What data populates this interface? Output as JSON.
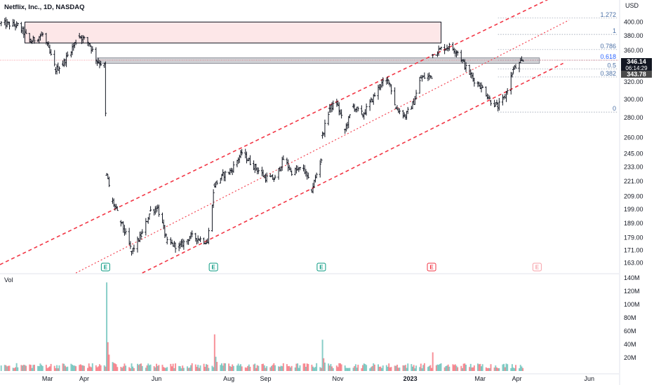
{
  "chart_data": {
    "type": "ohlc",
    "title": "Netflix, Inc., 1D, NASDAQ",
    "currency": "USD",
    "volume_label": "Vol",
    "y_scale": "log",
    "ylim": [
      157,
      432
    ],
    "y_ticks": [
      "400.00",
      "380.00",
      "360.00",
      "340.00",
      "320.00",
      "300.00",
      "280.00",
      "260.00",
      "245.00",
      "233.00",
      "221.00",
      "209.00",
      "199.00",
      "189.00",
      "179.00",
      "171.00",
      "163.00"
    ],
    "vol_ticks": [
      "140M",
      "120M",
      "100M",
      "80M",
      "60M",
      "40M",
      "20M"
    ],
    "x_ticks": [
      "Mar",
      "Apr",
      "Jun",
      "Aug",
      "Sep",
      "Nov",
      "2023",
      "Mar",
      "Apr",
      "Jun"
    ],
    "price_axis_labels": {
      "last_price": "346.14",
      "countdown": "06:14:29",
      "secondary_price": "343.78"
    },
    "fib_levels": [
      {
        "label": "1.272",
        "price": 406
      },
      {
        "label": "1",
        "price": 382
      },
      {
        "label": "0.786",
        "price": 361
      },
      {
        "label": "0.618",
        "price": 347
      },
      {
        "label": "0.5",
        "price": 336
      },
      {
        "label": "0.382",
        "price": 326
      },
      {
        "label": "0",
        "price": 286
      }
    ],
    "earnings_markers": [
      {
        "label": "E",
        "date": "2022-04-19",
        "style": "reported"
      },
      {
        "label": "E",
        "date": "2022-07-19",
        "style": "reported"
      },
      {
        "label": "E",
        "date": "2022-10-18",
        "style": "reported"
      },
      {
        "label": "E",
        "date": "2023-01-19",
        "style": "miss"
      },
      {
        "label": "E",
        "date": "2023-04-18",
        "style": "upcoming"
      }
    ],
    "zones": [
      {
        "name": "supply-zone",
        "price_from": 370,
        "price_to": 400,
        "date_from": "2022-02-10",
        "date_to": "2023-01-27"
      },
      {
        "name": "resistance-band",
        "price_from": 343,
        "price_to": 350,
        "date_from": "2022-04-12",
        "date_to": "2023-04-20"
      }
    ],
    "channel": {
      "upper": [
        [
          "2022-01-20",
          162
        ],
        [
          "2023-05-15",
          452
        ]
      ],
      "mid": [
        [
          "2022-03-25",
          157
        ],
        [
          "2023-05-15",
          403
        ]
      ],
      "lower": [
        [
          "2022-05-20",
          157
        ],
        [
          "2023-05-10",
          343
        ]
      ]
    },
    "anchors": [
      [
        "2022-01-21",
        398
      ],
      [
        "2022-02-04",
        395
      ],
      [
        "2022-02-15",
        372
      ],
      [
        "2022-02-25",
        382
      ],
      [
        "2022-03-08",
        335
      ],
      [
        "2022-03-14",
        342
      ],
      [
        "2022-03-28",
        380
      ],
      [
        "2022-04-05",
        370
      ],
      [
        "2022-04-12",
        346
      ],
      [
        "2022-04-18",
        340
      ],
      [
        "2022-04-20",
        226
      ],
      [
        "2022-04-25",
        205
      ],
      [
        "2022-05-02",
        190
      ],
      [
        "2022-05-11",
        170
      ],
      [
        "2022-05-20",
        182
      ],
      [
        "2022-05-27",
        198
      ],
      [
        "2022-06-02",
        200
      ],
      [
        "2022-06-10",
        176
      ],
      [
        "2022-06-20",
        173
      ],
      [
        "2022-06-30",
        180
      ],
      [
        "2022-07-08",
        178
      ],
      [
        "2022-07-14",
        176
      ],
      [
        "2022-07-20",
        218
      ],
      [
        "2022-07-27",
        226
      ],
      [
        "2022-08-03",
        230
      ],
      [
        "2022-08-12",
        246
      ],
      [
        "2022-08-20",
        236
      ],
      [
        "2022-09-01",
        224
      ],
      [
        "2022-09-09",
        223
      ],
      [
        "2022-09-16",
        240
      ],
      [
        "2022-09-23",
        229
      ],
      [
        "2022-10-03",
        232
      ],
      [
        "2022-10-10",
        214
      ],
      [
        "2022-10-18",
        240
      ],
      [
        "2022-10-19",
        262
      ],
      [
        "2022-10-25",
        290
      ],
      [
        "2022-10-31",
        296
      ],
      [
        "2022-11-07",
        268
      ],
      [
        "2022-11-14",
        292
      ],
      [
        "2022-11-22",
        283
      ],
      [
        "2022-11-30",
        300
      ],
      [
        "2022-12-07",
        317
      ],
      [
        "2022-12-14",
        322
      ],
      [
        "2022-12-20",
        290
      ],
      [
        "2022-12-28",
        282
      ],
      [
        "2023-01-04",
        297
      ],
      [
        "2023-01-10",
        325
      ],
      [
        "2023-01-19",
        327
      ],
      [
        "2023-01-20",
        354
      ],
      [
        "2023-01-27",
        362
      ],
      [
        "2023-02-03",
        365
      ],
      [
        "2023-02-10",
        358
      ],
      [
        "2023-02-17",
        337
      ],
      [
        "2023-02-24",
        322
      ],
      [
        "2023-03-03",
        313
      ],
      [
        "2023-03-10",
        298
      ],
      [
        "2023-03-16",
        292
      ],
      [
        "2023-03-22",
        303
      ],
      [
        "2023-03-29",
        335
      ],
      [
        "2023-04-06",
        346
      ]
    ],
    "volume_spikes": [
      {
        "date": "2022-04-20",
        "value": 133
      },
      {
        "date": "2022-07-20",
        "value": 55
      },
      {
        "date": "2022-10-19",
        "value": 47
      },
      {
        "date": "2023-01-20",
        "value": 28
      }
    ],
    "grid": false
  }
}
